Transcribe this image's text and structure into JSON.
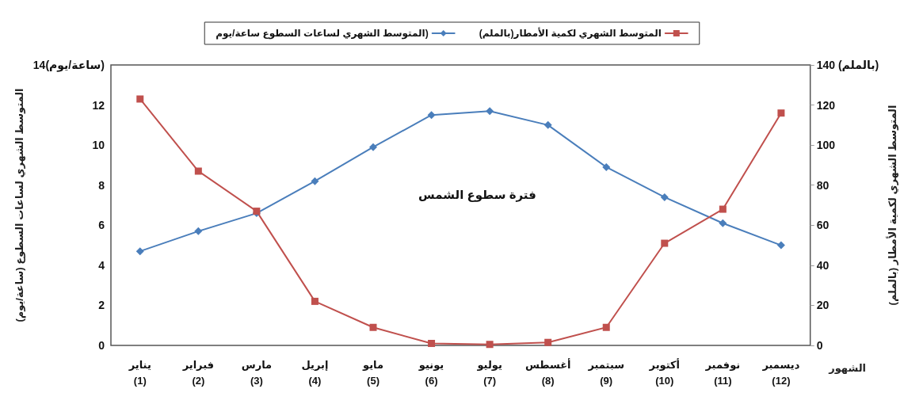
{
  "chart_data": {
    "type": "line",
    "categories": [
      "يناير\n(1)",
      "فبراير\n(2)",
      "مارس\n(3)",
      "إبريل\n(4)",
      "مايو\n(5)",
      "يونيو\n(6)",
      "يوليو\n(7)",
      "أغسطس\n(8)",
      "سبتمبر\n(9)",
      "أكتوبر\n(10)",
      "نوفمبر\n(11)",
      "ديسمبر\n(12)"
    ],
    "series": [
      {
        "name": "المتوسط الشهري لساعات السطوع ساعة/يوم)",
        "color": "#4a7ebb",
        "marker": "diamond",
        "values": [
          4.7,
          5.7,
          6.6,
          8.2,
          9.9,
          11.5,
          11.7,
          11.0,
          8.9,
          7.4,
          6.1,
          5.0
        ]
      },
      {
        "name": "المتوسط الشهري لكمية الأمطار(بالملم)",
        "color": "#c0504d",
        "marker": "square",
        "axis": "y2",
        "values": [
          123,
          87,
          67,
          22,
          9,
          1,
          0.5,
          1.5,
          9,
          51,
          68,
          116
        ]
      }
    ],
    "xlabel": "الشهور",
    "ylabel": "المتوسط الشهري لساعات السطوع (ساعة/يوم)",
    "y2label": "المتوسط الشهري لكمية الأمطار (بالملم)",
    "ylim": [
      0,
      14
    ],
    "yticks": [
      0,
      2,
      4,
      6,
      8,
      10,
      12,
      {
        "value": 14,
        "label": "14(ساعة/يوم)"
      }
    ],
    "y2lim": [
      0,
      140
    ],
    "y2ticks": [
      0,
      20,
      40,
      60,
      80,
      100,
      120,
      {
        "value": 140,
        "label": "140 (بالملم)"
      }
    ],
    "annotations": [
      "فترة سطوع الشمس"
    ],
    "legend": "top",
    "grid": false,
    "line_style": "solid"
  }
}
